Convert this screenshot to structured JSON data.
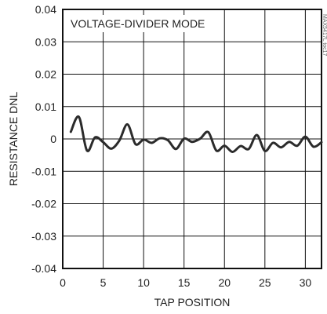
{
  "chart_data": {
    "type": "line",
    "xlabel": "TAP POSITION",
    "ylabel": "RESISTANCE DNL",
    "annotation": "VOLTAGE-DIVIDER MODE",
    "side_note": "MAX5417L toc17",
    "xlim": [
      0,
      32
    ],
    "ylim": [
      -0.04,
      0.04
    ],
    "x_ticks": [
      0,
      5,
      10,
      15,
      20,
      25,
      30
    ],
    "x_tick_labels": [
      "0",
      "5",
      "10",
      "15",
      "20",
      "25",
      "30"
    ],
    "y_ticks": [
      0.04,
      0.03,
      0.02,
      0.01,
      0,
      -0.01,
      -0.02,
      -0.03,
      -0.04
    ],
    "y_tick_labels": [
      "0.04",
      "0.03",
      "0.02",
      "0.01",
      "0",
      "-0.01",
      "-0.02",
      "-0.03",
      "-0.04"
    ],
    "grid": true,
    "series": [
      {
        "color": "#2b2b2b",
        "x": [
          1,
          2,
          3,
          4,
          5,
          6,
          7,
          8,
          9,
          10,
          11,
          12,
          13,
          14,
          15,
          16,
          17,
          18,
          19,
          20,
          21,
          22,
          23,
          24,
          25,
          26,
          27,
          28,
          29,
          30,
          31,
          32
        ],
        "values": [
          0.0022,
          0.0068,
          -0.0036,
          0.0005,
          -0.001,
          -0.003,
          -0.0005,
          0.0045,
          -0.0016,
          -0.0002,
          -0.0012,
          0.0002,
          -0.0004,
          -0.0031,
          0.0001,
          -0.0009,
          0.0001,
          0.0021,
          -0.0036,
          -0.0021,
          -0.004,
          -0.0022,
          -0.0031,
          0.0012,
          -0.0037,
          -0.0012,
          -0.0026,
          -0.0009,
          -0.0021,
          0.0007,
          -0.0024,
          -0.001
        ]
      }
    ]
  }
}
